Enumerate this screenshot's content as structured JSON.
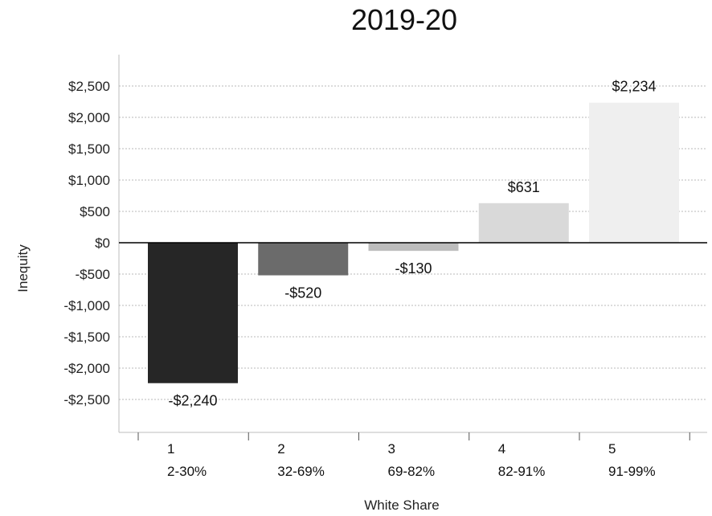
{
  "chart_data": {
    "type": "bar",
    "title": "2019-20",
    "xlabel": "White Share",
    "ylabel": "Inequity",
    "categories": [
      {
        "index": "1",
        "range": "2-30%"
      },
      {
        "index": "2",
        "range": "32-69%"
      },
      {
        "index": "3",
        "range": "69-82%"
      },
      {
        "index": "4",
        "range": "82-91%"
      },
      {
        "index": "5",
        "range": "91-99%"
      }
    ],
    "values": [
      -2240,
      -520,
      -130,
      631,
      2234
    ],
    "data_labels": [
      "-$2,240",
      "-$520",
      "-$130",
      "$631",
      "$2,234"
    ],
    "bar_colors": [
      "#262626",
      "#6b6b6b",
      "#bdbdbd",
      "#d9d9d9",
      "#efefef"
    ],
    "yticks": [
      2500,
      2000,
      1500,
      1000,
      500,
      0,
      -500,
      -1000,
      -1500,
      -2000,
      -2500
    ],
    "ytick_labels": [
      "$2,500",
      "$2,000",
      "$1,500",
      "$1,000",
      "$500",
      "$0",
      "-$500",
      "-$1,000",
      "-$1,500",
      "-$2,000",
      "-$2,500"
    ],
    "ylim": [
      -3000,
      3000
    ],
    "grid": true,
    "legend": "none"
  }
}
